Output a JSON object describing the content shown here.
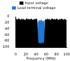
{
  "chart_data": {
    "type": "line",
    "x_label": "Frequency (MHz)",
    "x": [
      0,
      2,
      4,
      6,
      8,
      10,
      12,
      14,
      16,
      18,
      20,
      22,
      24,
      26,
      28,
      30,
      32,
      34,
      36,
      38,
      40,
      42,
      44,
      46,
      48,
      50,
      52,
      54,
      56,
      58,
      60,
      62,
      64,
      66,
      68,
      70,
      72,
      74,
      76,
      78,
      80,
      82,
      84,
      86,
      88,
      90,
      92,
      94,
      96,
      98,
      100
    ],
    "series": [
      {
        "name": "Input voltage",
        "color": "#000000",
        "values": [
          -12,
          -8,
          -10,
          -6,
          -9,
          -11,
          -7,
          -10,
          -8,
          -12,
          -9,
          -6,
          -10,
          -8,
          -11,
          -7,
          -9,
          -12,
          -8,
          -10,
          -7,
          -9,
          -85,
          -88,
          -86,
          -90,
          -87,
          -85,
          -89,
          -9,
          -11,
          -7,
          -10,
          -8,
          -12,
          -9,
          -6,
          -10,
          -8,
          -11,
          -7,
          -9,
          -12,
          -8,
          -10,
          -7,
          -9,
          -11,
          -8,
          -10,
          -12
        ]
      },
      {
        "name": "Load terminal voltage",
        "color": "#1f77d0",
        "values": [
          -92,
          -95,
          -90,
          -94,
          -93,
          -91,
          -96,
          -92,
          -94,
          -90,
          -93,
          -95,
          -91,
          -94,
          -92,
          -96,
          -90,
          -93,
          -95,
          -91,
          -94,
          -92,
          -18,
          -12,
          -15,
          -10,
          -14,
          -16,
          -13,
          -92,
          -95,
          -90,
          -94,
          -93,
          -91,
          -96,
          -92,
          -94,
          -90,
          -93,
          -95,
          -91,
          -94,
          -92,
          -96,
          -90,
          -93,
          -95,
          -91,
          -94,
          -92
        ]
      }
    ],
    "xlim": [
      0,
      100
    ],
    "xticks": [
      0,
      20,
      40,
      60,
      80,
      100
    ],
    "ylim": [
      -100,
      0
    ],
    "yticks": [
      -100,
      -80,
      -60,
      -40,
      -20,
      0
    ],
    "grid": false,
    "legend": "top"
  }
}
